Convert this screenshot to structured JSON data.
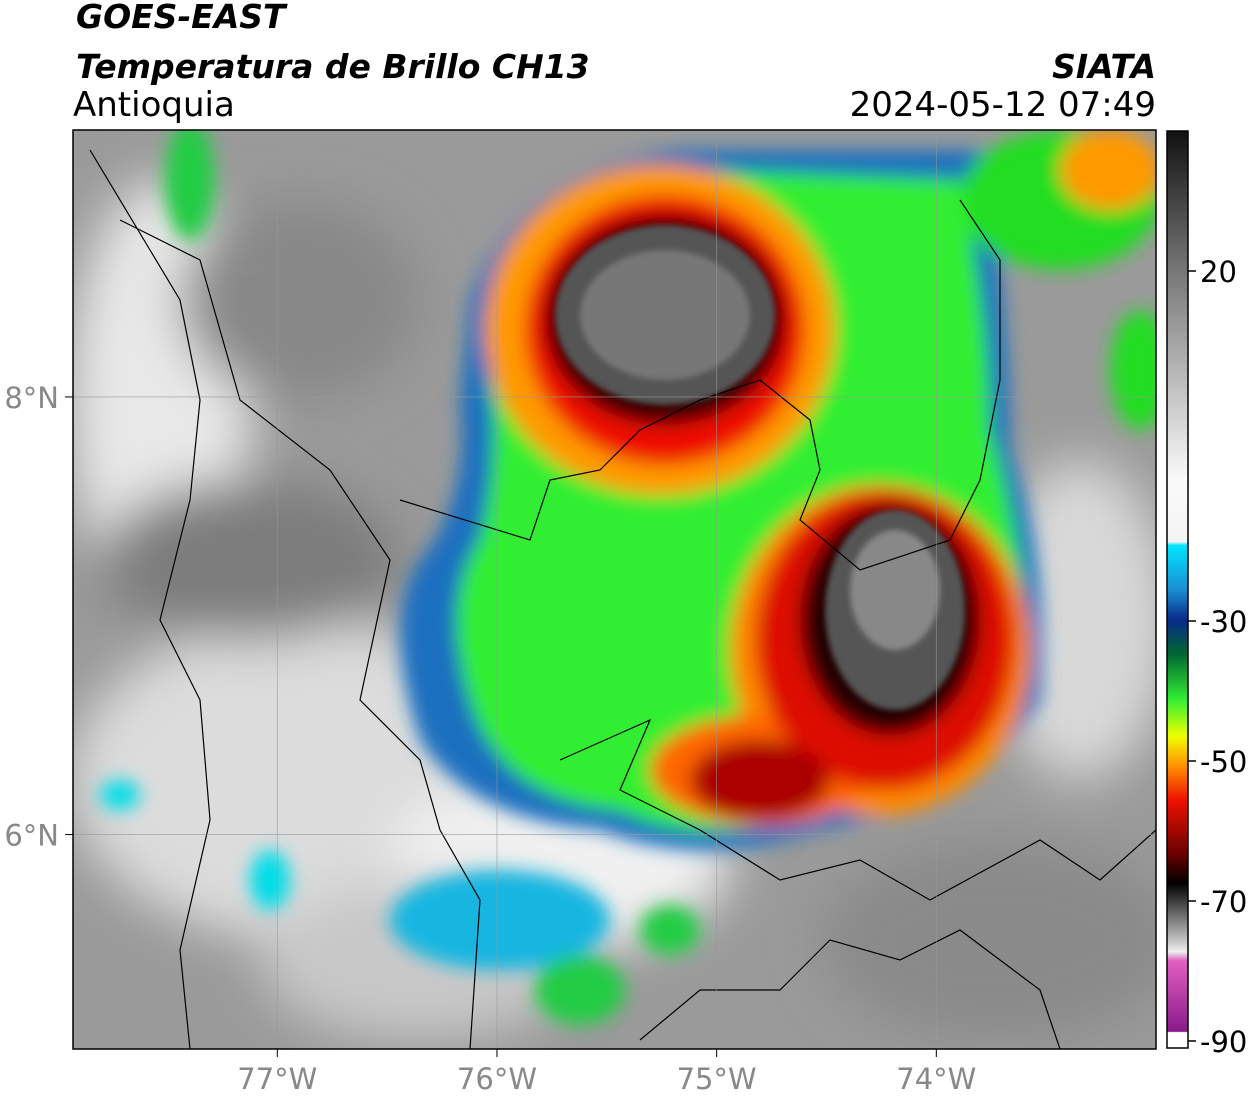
{
  "chart_data": {
    "type": "map",
    "title": "GOES-EAST",
    "subtitle": "Temperatura de Brillo CH13",
    "region": "Antioquia",
    "source": "SIATA",
    "timestamp": "2024-05-12 07:49",
    "xlim": [
      -77.93,
      -73.0
    ],
    "ylim": [
      5.02,
      9.22
    ],
    "xticks": [
      {
        "value": -77,
        "label": "77°W"
      },
      {
        "value": -76,
        "label": "76°W"
      },
      {
        "value": -75,
        "label": "75°W"
      },
      {
        "value": -74,
        "label": "74°W"
      }
    ],
    "yticks": [
      {
        "value": 8,
        "label": "8°N"
      },
      {
        "value": 6,
        "label": "6°N"
      }
    ],
    "grid": true,
    "colorbar": {
      "lim": [
        -91,
        40
      ],
      "ticks": [
        20,
        -30,
        -50,
        -70,
        -90
      ]
    }
  }
}
